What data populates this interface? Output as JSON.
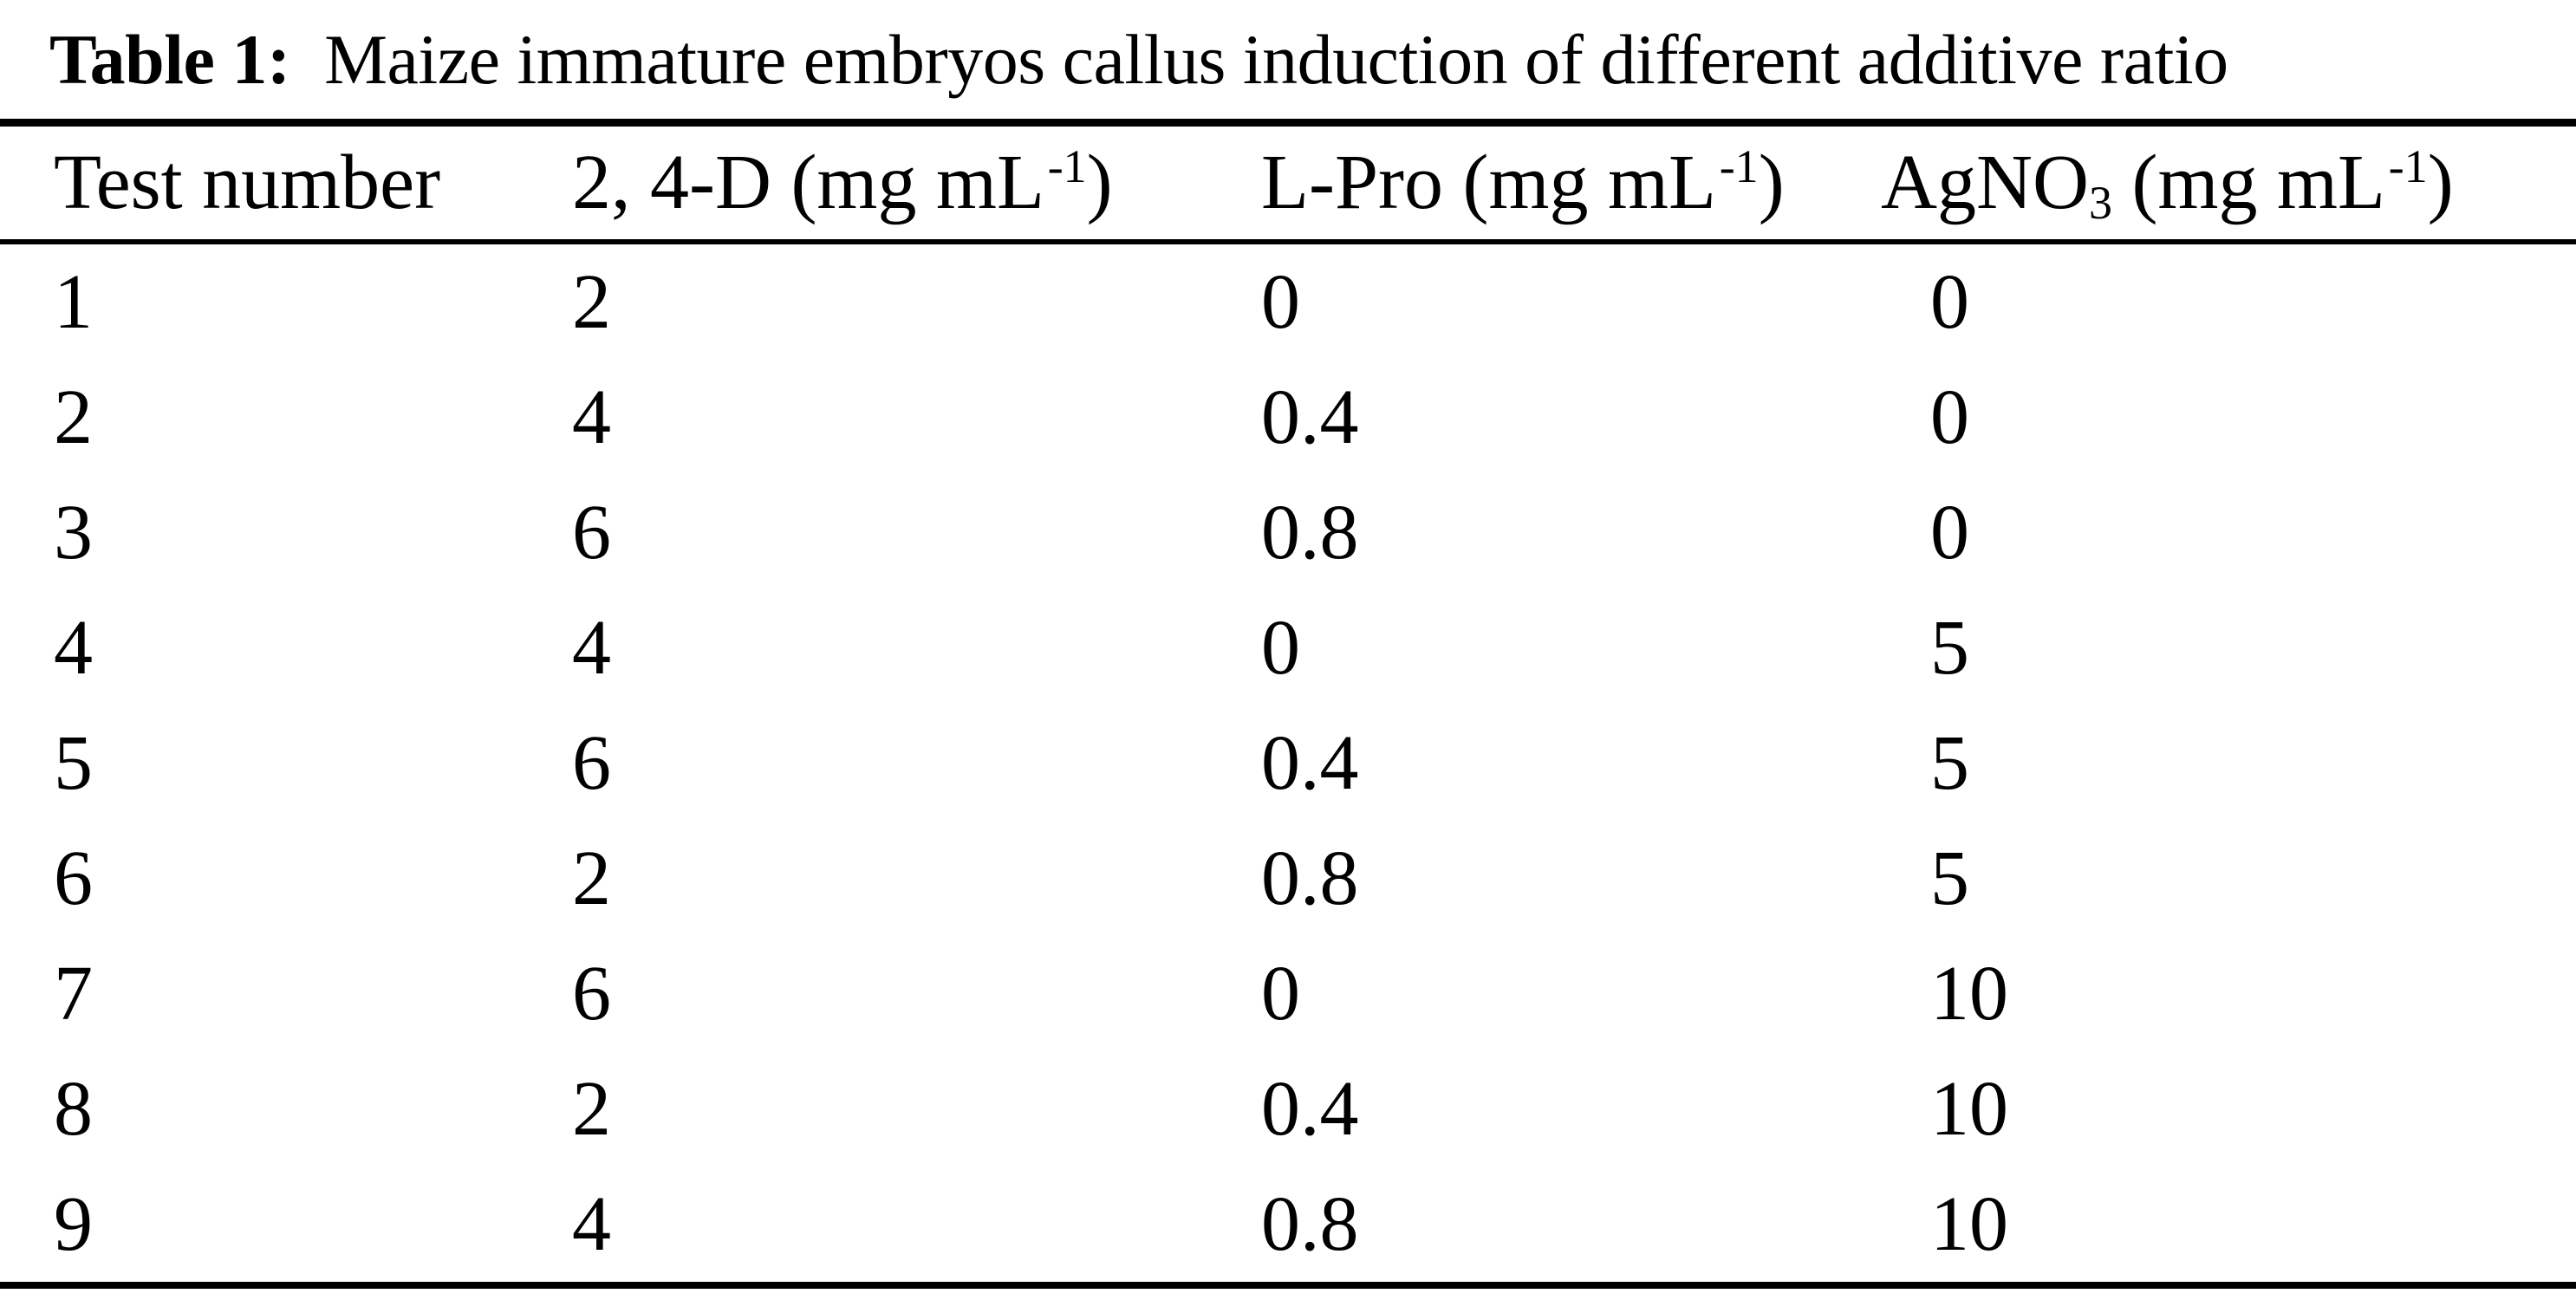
{
  "caption": {
    "label": "Table 1:",
    "text": "Maize immature embryos callus induction of different additive ratio"
  },
  "table": {
    "columns": [
      {
        "id": "test",
        "header": {
          "text": "Test number"
        }
      },
      {
        "id": "d24",
        "header": {
          "pre": "2, 4-D (mg mL",
          "sup": "-1",
          "post": ")"
        }
      },
      {
        "id": "lpro",
        "header": {
          "pre": "L-Pro (mg mL",
          "sup": "-1",
          "post": ")"
        }
      },
      {
        "id": "agno3",
        "header": {
          "pre": "AgNO",
          "sub": "3",
          "mid": " (mg mL",
          "sup": "-1",
          "post": ")"
        }
      }
    ],
    "rows": [
      {
        "test": "1",
        "d24": "2",
        "lpro": "0",
        "agno3": "0"
      },
      {
        "test": "2",
        "d24": "4",
        "lpro": "0.4",
        "agno3": "0"
      },
      {
        "test": "3",
        "d24": "6",
        "lpro": "0.8",
        "agno3": "0"
      },
      {
        "test": "4",
        "d24": "4",
        "lpro": "0",
        "agno3": "5"
      },
      {
        "test": "5",
        "d24": "6",
        "lpro": "0.4",
        "agno3": "5"
      },
      {
        "test": "6",
        "d24": "2",
        "lpro": "0.8",
        "agno3": "5"
      },
      {
        "test": "7",
        "d24": "6",
        "lpro": "0",
        "agno3": "10"
      },
      {
        "test": "8",
        "d24": "2",
        "lpro": "0.4",
        "agno3": "10"
      },
      {
        "test": "9",
        "d24": "4",
        "lpro": "0.8",
        "agno3": "10"
      }
    ]
  },
  "colors": {
    "ink": "#000000",
    "paper": "#ffffff"
  }
}
